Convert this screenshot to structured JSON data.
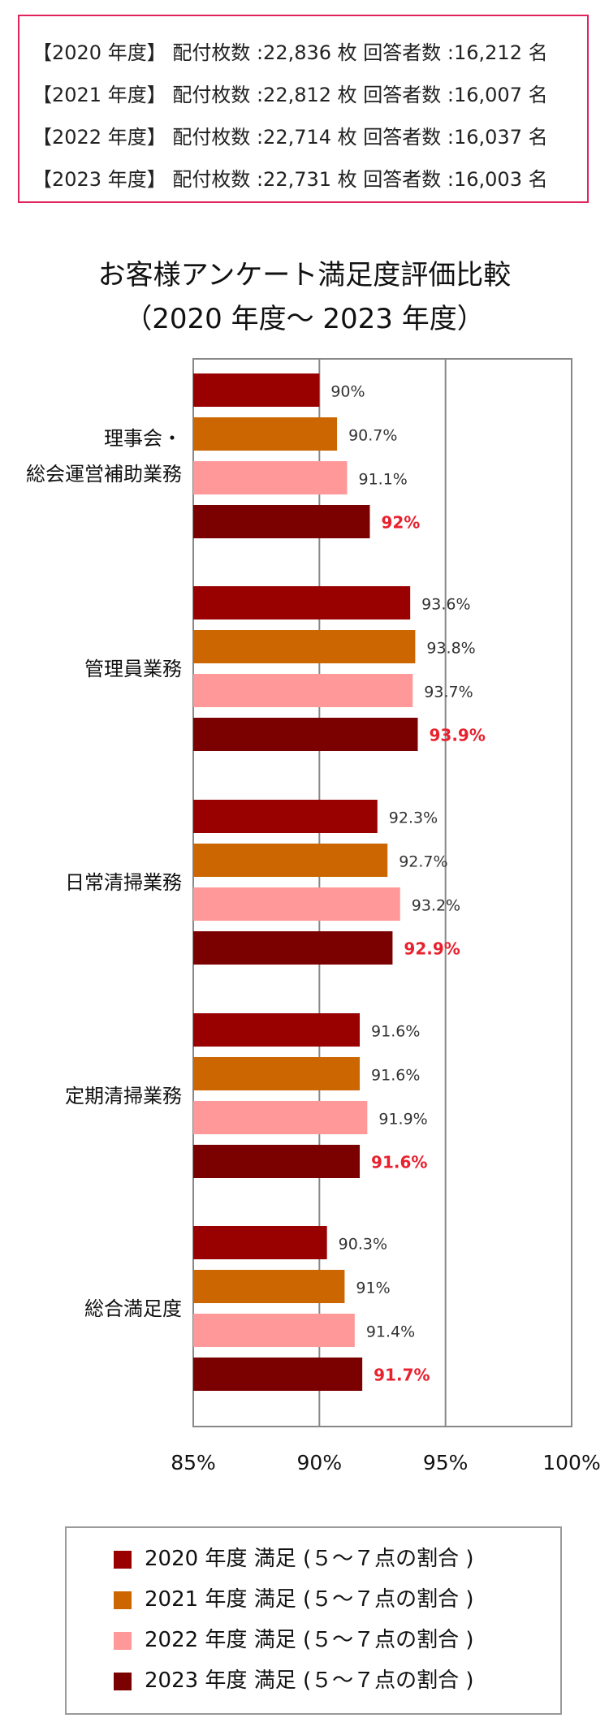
{
  "info_lines": [
    "【2020 年度】 配付枚数 :22,836 枚  回答者数 :16,212 名",
    "【2021 年度】 配付枚数 :22,812 枚  回答者数 :16,007 名",
    "【2022 年度】 配付枚数 :22,714 枚  回答者数 :16,037 名",
    "【2023 年度】 配付枚数 :22,731 枚  回答者数 :16,003 名"
  ],
  "colors": {
    "info_border": "#e0245e",
    "highlight_label": "#e8212e",
    "axis": "#888888",
    "legend_border": "#9a9a9a"
  },
  "chart_data": {
    "type": "bar",
    "orientation": "horizontal",
    "title_lines": [
      "お客様アンケート満足度評価比較",
      "（2020 年度〜 2023 年度）"
    ],
    "categories": [
      [
        "理事会・",
        "総会運営補助業務"
      ],
      [
        "管理員業務"
      ],
      [
        "日常清掃業務"
      ],
      [
        "定期清掃業務"
      ],
      [
        "総合満足度"
      ]
    ],
    "series": [
      {
        "name": "2020 年度 満足 (５〜７点の割合 )",
        "color": "#990000",
        "values": [
          90,
          93.6,
          92.3,
          91.6,
          90.3
        ]
      },
      {
        "name": "2021 年度 満足 (５〜７点の割合 )",
        "color": "#cc6600",
        "values": [
          90.7,
          93.8,
          92.7,
          91.6,
          91
        ]
      },
      {
        "name": "2022 年度 満足 (５〜７点の割合 )",
        "color": "#ff9999",
        "values": [
          91.1,
          93.7,
          93.2,
          91.9,
          91.4
        ]
      },
      {
        "name": "2023 年度 満足 (５〜７点の割合 )",
        "color": "#7b0000",
        "values": [
          92,
          93.9,
          92.9,
          91.6,
          91.7
        ]
      }
    ],
    "data_labels": [
      [
        "90%",
        "93.6%",
        "92.3%",
        "91.6%",
        "90.3%"
      ],
      [
        "90.7%",
        "93.8%",
        "92.7%",
        "91.6%",
        "91%"
      ],
      [
        "91.1%",
        "93.7%",
        "93.2%",
        "91.9%",
        "91.4%"
      ],
      [
        "92%",
        "93.9%",
        "92.9%",
        "91.6%",
        "91.7%"
      ]
    ],
    "highlight_series_index": 3,
    "xlim": [
      85,
      100
    ],
    "xticks": [
      85,
      90,
      95,
      100
    ],
    "xtick_labels": [
      "85%",
      "90%",
      "95%",
      "100%"
    ],
    "grid": "vertical at 90 and 95",
    "legend_position": "bottom"
  }
}
